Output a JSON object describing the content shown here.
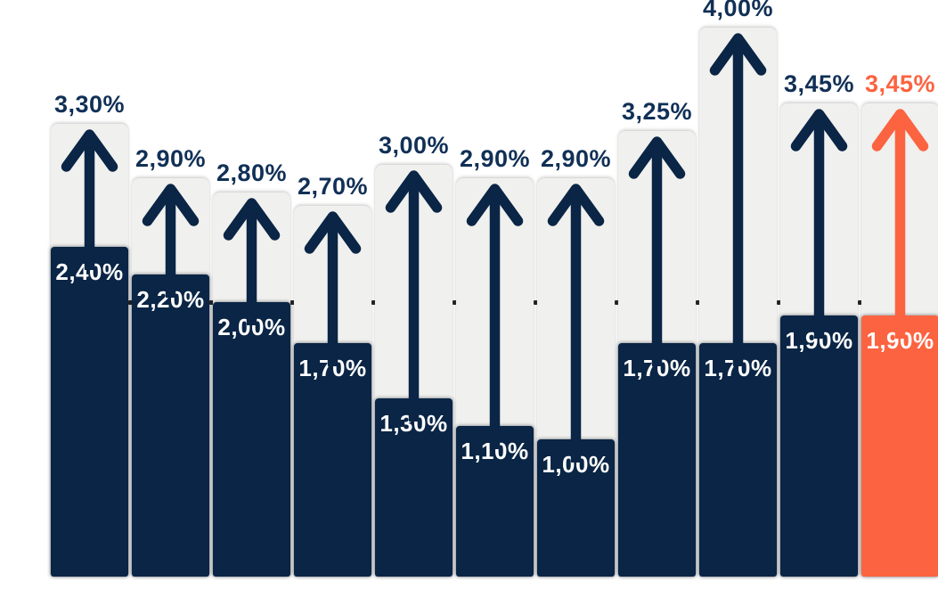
{
  "chart_data": {
    "type": "bar",
    "title": "",
    "xlabel": "",
    "ylabel": "",
    "unit": "percent",
    "ylim": [
      0,
      4.2
    ],
    "axes_visible": false,
    "legend": "none",
    "gridline_level": 2.0,
    "description": "Eleven columns; each navy bar shows a current percentage and a thick upward arrow inside a light-gray track points to a higher target percentage labeled above; the last column is highlighted orange.",
    "columns": [
      {
        "current": 2.4,
        "current_label": "2,40%",
        "target": 3.3,
        "target_label": "3,30%",
        "highlight": false
      },
      {
        "current": 2.2,
        "current_label": "2,20%",
        "target": 2.9,
        "target_label": "2,90%",
        "highlight": false
      },
      {
        "current": 2.0,
        "current_label": "2,00%",
        "target": 2.8,
        "target_label": "2,80%",
        "highlight": false
      },
      {
        "current": 1.7,
        "current_label": "1,70%",
        "target": 2.7,
        "target_label": "2,70%",
        "highlight": false
      },
      {
        "current": 1.3,
        "current_label": "1,30%",
        "target": 3.0,
        "target_label": "3,00%",
        "highlight": false
      },
      {
        "current": 1.1,
        "current_label": "1,10%",
        "target": 2.9,
        "target_label": "2,90%",
        "highlight": false
      },
      {
        "current": 1.0,
        "current_label": "1,00%",
        "target": 2.9,
        "target_label": "2,90%",
        "highlight": false
      },
      {
        "current": 1.7,
        "current_label": "1,70%",
        "target": 3.25,
        "target_label": "3,25%",
        "highlight": false
      },
      {
        "current": 1.7,
        "current_label": "1,70%",
        "target": 4.0,
        "target_label": "4,00%",
        "highlight": false
      },
      {
        "current": 1.9,
        "current_label": "1,90%",
        "target": 3.45,
        "target_label": "3,45%",
        "highlight": false
      },
      {
        "current": 1.9,
        "current_label": "1,90%",
        "target": 3.45,
        "target_label": "3,45%",
        "highlight": true
      }
    ],
    "colors": {
      "bar": "#0a2545",
      "bar_highlight": "#fc6340",
      "track": "#f0f0ee",
      "arrow": "#0a2545",
      "arrow_highlight": "#fc6340",
      "target_label": "#113056",
      "target_label_highlight": "#fc6340",
      "current_label": "#ffffff",
      "grid_dot": "#1c1c1c",
      "background": "#ffffff"
    }
  }
}
